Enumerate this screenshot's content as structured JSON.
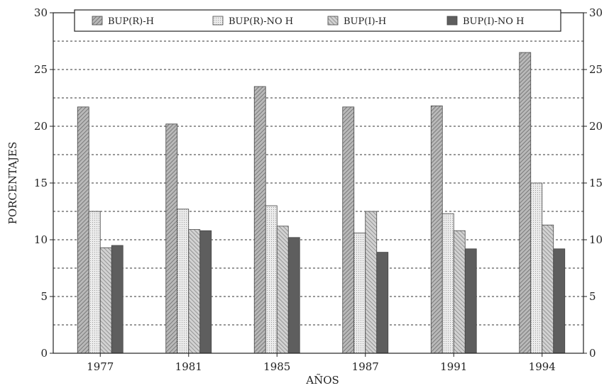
{
  "chart_data": {
    "type": "bar",
    "xlabel": "AÑOS",
    "ylabel": "PORCENTAJES",
    "ylim": [
      0,
      30
    ],
    "y_ticks": [
      0,
      5,
      10,
      15,
      20,
      25,
      30
    ],
    "grid": "horizontal dashed",
    "legend_position": "top",
    "categories": [
      "1977",
      "1981",
      "1985",
      "1987",
      "1991",
      "1994"
    ],
    "series": [
      {
        "name": "BUP(R)-H",
        "values": [
          21.7,
          20.2,
          23.5,
          21.7,
          21.8,
          26.5
        ],
        "color": "#9a9a9a"
      },
      {
        "name": "BUP(R)-NO H",
        "values": [
          12.5,
          12.7,
          13.0,
          10.6,
          12.3,
          15.0
        ],
        "color": "#dcdcdc"
      },
      {
        "name": "BUP(I)-H",
        "values": [
          9.3,
          10.9,
          11.2,
          12.5,
          10.8,
          11.3
        ],
        "color": "#b4b4b4"
      },
      {
        "name": "BUP(I)-NO H",
        "values": [
          9.5,
          10.8,
          10.2,
          8.9,
          9.2,
          9.2
        ],
        "color": "#5e5e5e"
      }
    ]
  }
}
